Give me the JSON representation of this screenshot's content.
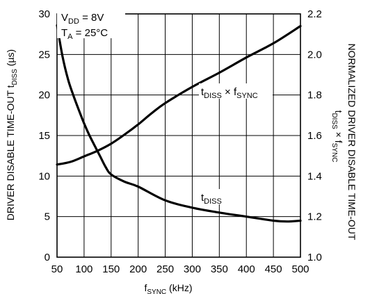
{
  "chart_data": {
    "type": "line",
    "xlabel_main": "f",
    "xlabel_sub": "SYNC",
    "xlabel_unit": " (kHz)",
    "ylabel_main": "DRIVER DISABLE TIME-OUT t",
    "ylabel_sub": "DISS",
    "ylabel_unit": " (µs)",
    "y2label_line1": "NORMALIZED DRIVER DISABLE TIME-OUT",
    "y2label_line2": {
      "t": "t",
      "sub1": "DISS",
      "times": " × f",
      "sub2": "SYNC"
    },
    "xlim": [
      50,
      500
    ],
    "ylim": [
      0,
      30
    ],
    "y2lim": [
      1.0,
      2.2
    ],
    "x_ticks": [
      "50",
      "100",
      "150",
      "200",
      "250",
      "300",
      "350",
      "400",
      "450",
      "500"
    ],
    "y_ticks": [
      "0",
      "5",
      "10",
      "15",
      "20",
      "25",
      "30"
    ],
    "y2_ticks": [
      "1.0",
      "1.2",
      "1.4",
      "1.6",
      "1.8",
      "2.0",
      "2.2"
    ],
    "conditions": {
      "vdd": {
        "main": "V",
        "sub": "DD",
        "rest": " = 8V"
      },
      "ta": {
        "main": "T",
        "sub": "A",
        "rest": " = 25°C"
      }
    },
    "series": [
      {
        "name": {
          "t": "t",
          "sub": "DISS"
        },
        "axis": "left",
        "x": [
          50,
          60,
          70,
          80,
          90,
          100,
          110,
          120,
          130,
          140,
          150,
          175,
          200,
          250,
          300,
          350,
          400,
          450,
          475,
          500
        ],
        "y": [
          28.6,
          24.8,
          22.0,
          20.0,
          18.2,
          16.5,
          15.0,
          13.7,
          12.4,
          11.1,
          10.2,
          9.3,
          8.7,
          7.0,
          6.1,
          5.5,
          5.0,
          4.5,
          4.4,
          4.5
        ]
      },
      {
        "name": {
          "t": "t",
          "sub1": "DISS",
          "times": " × f",
          "sub2": "SYNC"
        },
        "axis": "right",
        "x": [
          50,
          75,
          100,
          125,
          150,
          175,
          200,
          225,
          250,
          300,
          350,
          400,
          450,
          500
        ],
        "y": [
          1.457,
          1.47,
          1.497,
          1.525,
          1.56,
          1.605,
          1.655,
          1.71,
          1.76,
          1.84,
          1.91,
          1.985,
          2.055,
          2.14
        ]
      }
    ]
  }
}
